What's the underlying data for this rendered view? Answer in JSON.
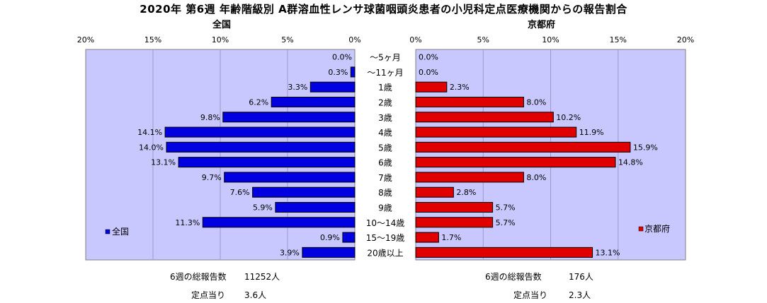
{
  "title": "2020年 第6週 年齢階級別 A群溶血性レンサ球菌咽頭炎患者の小児科定点医療機関からの報告割合",
  "chart_data": [
    {
      "type": "bar",
      "orientation": "horizontal",
      "title": "全国",
      "xlim": [
        0,
        20
      ],
      "x_direction": "reversed",
      "tick_labels": [
        "20%",
        "15%",
        "10%",
        "5%",
        "0%"
      ],
      "legend": {
        "label": "全国",
        "position": "bottom-left"
      },
      "bar_color": "#0000e0",
      "plot_background": "#c8c8ff",
      "categories": [
        "〜5ヶ月",
        "〜11ヶ月",
        "1歳",
        "2歳",
        "3歳",
        "4歳",
        "5歳",
        "6歳",
        "7歳",
        "8歳",
        "9歳",
        "10〜14歳",
        "15〜19歳",
        "20歳以上"
      ],
      "values": [
        0.0,
        0.3,
        3.3,
        6.2,
        9.8,
        14.1,
        14.0,
        13.1,
        9.7,
        7.6,
        5.9,
        11.3,
        0.9,
        3.9
      ],
      "data_labels": [
        "0.0%",
        "0.3%",
        "3.3%",
        "6.2%",
        "9.8%",
        "14.1%",
        "14.0%",
        "13.1%",
        "9.7%",
        "7.6%",
        "5.9%",
        "11.3%",
        "0.9%",
        "3.9%"
      ]
    },
    {
      "type": "bar",
      "orientation": "horizontal",
      "title": "京都府",
      "xlim": [
        0,
        20
      ],
      "tick_labels": [
        "0%",
        "5%",
        "10%",
        "15%",
        "20%"
      ],
      "legend": {
        "label": "京都府",
        "position": "bottom-right"
      },
      "bar_color": "#e00000",
      "plot_background": "#c8c8ff",
      "categories": [
        "〜5ヶ月",
        "〜11ヶ月",
        "1歳",
        "2歳",
        "3歳",
        "4歳",
        "5歳",
        "6歳",
        "7歳",
        "8歳",
        "9歳",
        "10〜14歳",
        "15〜19歳",
        "20歳以上"
      ],
      "values": [
        0.0,
        0.0,
        2.3,
        8.0,
        10.2,
        11.9,
        15.9,
        14.8,
        8.0,
        2.8,
        5.7,
        5.7,
        1.7,
        13.1
      ],
      "data_labels": [
        "0.0%",
        "0.0%",
        "2.3%",
        "8.0%",
        "10.2%",
        "11.9%",
        "15.9%",
        "14.8%",
        "8.0%",
        "2.8%",
        "5.7%",
        "5.7%",
        "1.7%",
        "13.1%"
      ]
    }
  ],
  "footer": {
    "national": {
      "total_label": "6週の総報告数",
      "total_value": "11252人",
      "per_label": "定点当り",
      "per_value": "3.6人"
    },
    "kyoto": {
      "total_label": "6週の総報告数",
      "total_value": "176人",
      "per_label": "定点当り",
      "per_value": "2.3人"
    }
  }
}
